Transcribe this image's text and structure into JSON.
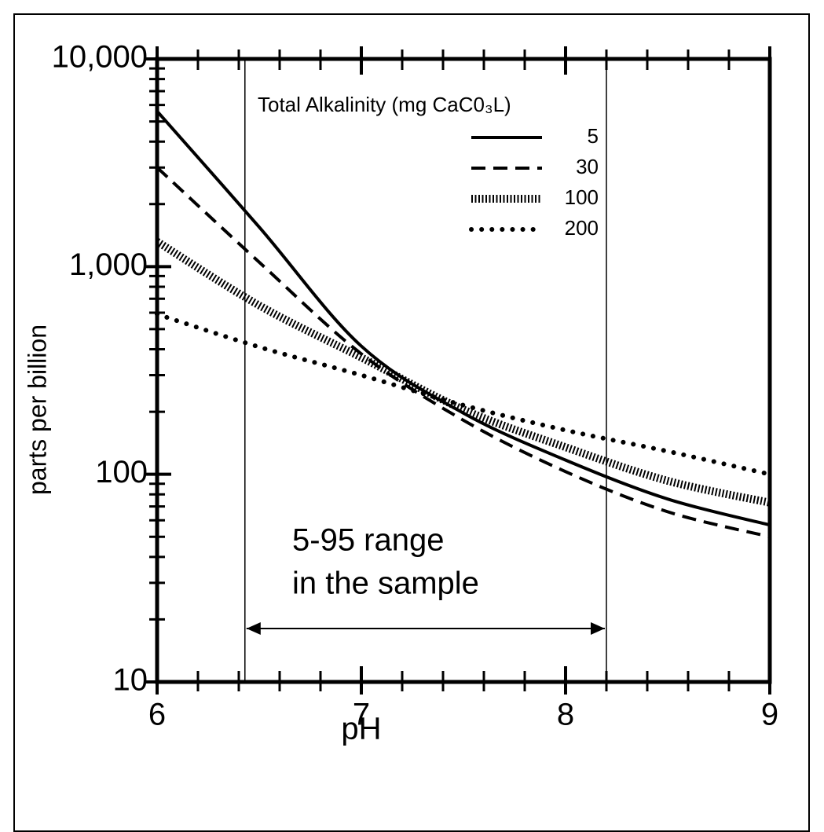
{
  "chart_data": {
    "type": "line",
    "x_label": "pH",
    "y_label": "parts per billion",
    "log_y": true,
    "xlim": [
      6,
      9
    ],
    "xticks": [
      6,
      7,
      8,
      9
    ],
    "xminorticks": [
      6.2,
      6.4,
      6.6,
      6.8,
      7.2,
      7.4,
      7.6,
      7.8,
      8.2,
      8.4,
      8.6,
      8.8
    ],
    "ylim": [
      10,
      10000
    ],
    "yticks": [
      10,
      100,
      {
        "value": 1000,
        "label": "1,000"
      },
      {
        "value": 10000,
        "label": "10,000"
      }
    ],
    "yminorticks": [
      20,
      30,
      40,
      50,
      60,
      70,
      80,
      90,
      200,
      300,
      400,
      500,
      600,
      700,
      800,
      900,
      2000,
      3000,
      4000,
      5000,
      6000,
      7000,
      8000,
      9000
    ],
    "legend_title": "Total Alkalinity (mg CaC0₃L)",
    "x": [
      6,
      6.5,
      7,
      7.5,
      8,
      8.5,
      9
    ],
    "series": [
      {
        "name": "5",
        "color": "#000000",
        "style": "solid",
        "values": [
          5600,
          1550,
          414,
          197,
          117,
          76,
          57
        ]
      },
      {
        "name": "30",
        "color": "#000000",
        "style": "dashed",
        "values": [
          3000,
          1050,
          380,
          182,
          103,
          66,
          50
        ]
      },
      {
        "name": "100",
        "color": "#000000",
        "style": "hatched",
        "values": [
          1320,
          650,
          365,
          205,
          135,
          93,
          73
        ]
      },
      {
        "name": "200",
        "color": "#000000",
        "style": "dotted",
        "values": [
          590,
          410,
          300,
          215,
          163,
          129,
          100
        ]
      }
    ],
    "vlines": [
      6.43,
      8.2
    ],
    "annotation": [
      "5-95 range",
      "in the sample"
    ]
  }
}
